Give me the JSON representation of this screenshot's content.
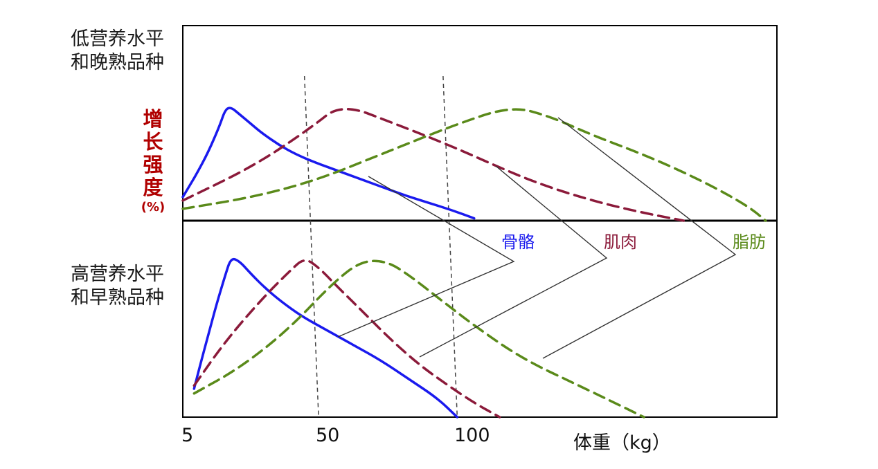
{
  "chart_data": {
    "type": "line",
    "title": "",
    "ylabel_chars": [
      "增",
      "长",
      "强",
      "度"
    ],
    "ylabel_unit": "(%)",
    "xlabel": "体重（kg）",
    "xlim": [
      5,
      215
    ],
    "ylim": [
      0,
      100
    ],
    "x_ticks": [
      {
        "value": 5,
        "label": "5"
      },
      {
        "value": 50,
        "label": "50"
      },
      {
        "value": 100,
        "label": "100"
      }
    ],
    "reference_lines_x": [
      {
        "top": 48,
        "bottom": 53
      },
      {
        "top": 97,
        "bottom": 102
      }
    ],
    "panels": [
      {
        "name": "low",
        "label_lines": [
          "低营养水平",
          "和晚熟品种"
        ],
        "series": [
          {
            "name": "骨骼",
            "color": "#1a1aee",
            "dash": false,
            "points": [
              [
                5,
                20
              ],
              [
                7,
                28
              ],
              [
                10,
                40
              ],
              [
                14,
                58
              ],
              [
                18,
                80
              ],
              [
                20,
                94
              ],
              [
                22,
                96
              ],
              [
                25,
                90
              ],
              [
                29,
                82
              ],
              [
                33,
                74
              ],
              [
                39,
                64
              ],
              [
                45,
                56
              ],
              [
                52,
                49
              ],
              [
                60,
                42
              ],
              [
                68,
                35
              ],
              [
                76,
                28
              ],
              [
                84,
                21
              ],
              [
                92,
                15
              ],
              [
                100,
                9
              ],
              [
                108,
                2
              ]
            ]
          },
          {
            "name": "肌肉",
            "color": "#8b1a3a",
            "dash": true,
            "points": [
              [
                5,
                17
              ],
              [
                30,
                46
              ],
              [
                50,
                78
              ],
              [
                61,
                99
              ],
              [
                80,
                82
              ],
              [
                100,
                63
              ],
              [
                115,
                47
              ],
              [
                130,
                32
              ],
              [
                148,
                18
              ],
              [
                165,
                8
              ],
              [
                182,
                0
              ]
            ]
          },
          {
            "name": "脂肪",
            "color": "#5a8a1a",
            "dash": true,
            "points": [
              [
                5,
                10
              ],
              [
                30,
                20
              ],
              [
                52,
                34
              ],
              [
                75,
                56
              ],
              [
                100,
                80
              ],
              [
                121,
                97
              ],
              [
                135,
                88
              ],
              [
                150,
                72
              ],
              [
                170,
                54
              ],
              [
                190,
                32
              ],
              [
                205,
                12
              ],
              [
                211,
                0
              ]
            ]
          }
        ]
      },
      {
        "name": "high",
        "label_lines": [
          "高营养水平",
          "和早熟品种"
        ],
        "series": [
          {
            "name": "骨骼",
            "color": "#1a1aee",
            "dash": false,
            "points": [
              [
                9,
                18
              ],
              [
                11,
                32
              ],
              [
                14,
                52
              ],
              [
                17,
                72
              ],
              [
                20,
                90
              ],
              [
                22,
                101
              ],
              [
                25,
                99
              ],
              [
                29,
                91
              ],
              [
                34,
                82
              ],
              [
                40,
                73
              ],
              [
                47,
                64
              ],
              [
                55,
                56
              ],
              [
                65,
                46
              ],
              [
                75,
                36
              ],
              [
                85,
                24
              ],
              [
                95,
                12
              ],
              [
                102,
                0
              ]
            ]
          },
          {
            "name": "肌肉",
            "color": "#8b1a3a",
            "dash": true,
            "points": [
              [
                9,
                20
              ],
              [
                20,
                48
              ],
              [
                33,
                75
              ],
              [
                43,
                93
              ],
              [
                48,
                101
              ],
              [
                53,
                95
              ],
              [
                60,
                82
              ],
              [
                68,
                68
              ],
              [
                78,
                50
              ],
              [
                88,
                34
              ],
              [
                98,
                21
              ],
              [
                108,
                9
              ],
              [
                117,
                0
              ]
            ]
          },
          {
            "name": "脂肪",
            "color": "#5a8a1a",
            "dash": true,
            "points": [
              [
                9,
                15
              ],
              [
                25,
                31
              ],
              [
                42,
                55
              ],
              [
                58,
                85
              ],
              [
                68,
                99
              ],
              [
                77,
                99
              ],
              [
                85,
                90
              ],
              [
                95,
                76
              ],
              [
                108,
                58
              ],
              [
                125,
                37
              ],
              [
                145,
                20
              ],
              [
                160,
                7
              ],
              [
                168,
                0
              ]
            ]
          }
        ]
      }
    ],
    "legend": [
      {
        "name": "骨骼",
        "color": "#1a1aee"
      },
      {
        "name": "肌肉",
        "color": "#8b1a3a"
      },
      {
        "name": "脂肪",
        "color": "#5a8a1a"
      }
    ]
  }
}
